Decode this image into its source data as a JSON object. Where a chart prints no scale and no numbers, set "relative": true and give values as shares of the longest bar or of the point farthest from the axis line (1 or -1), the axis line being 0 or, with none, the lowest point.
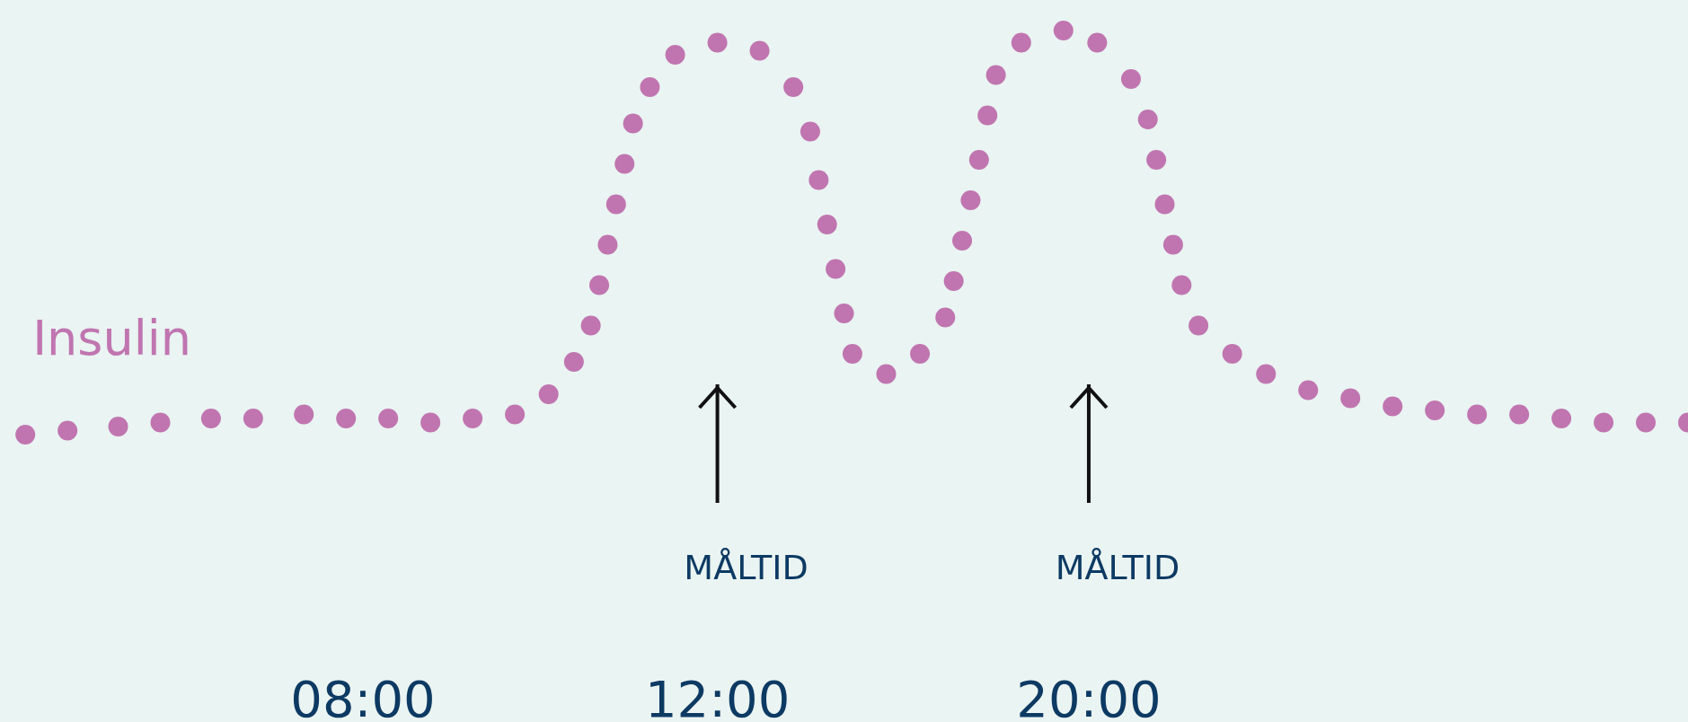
{
  "chart_data": {
    "type": "scatter",
    "relative": true,
    "marker": "circle",
    "categories": [
      null,
      null,
      null,
      null,
      null,
      null,
      null,
      null,
      null,
      null,
      null,
      null,
      null,
      null,
      null,
      null,
      null,
      null,
      null,
      null,
      null,
      null,
      null,
      null,
      null,
      null,
      null,
      null,
      null,
      null,
      null,
      null,
      null,
      null,
      null,
      null,
      null,
      null,
      null,
      null,
      null,
      null,
      null,
      "08:00",
      null,
      null,
      null,
      null,
      null,
      null,
      null,
      null,
      null,
      null,
      null,
      null,
      null,
      null,
      null,
      null,
      null,
      null,
      null,
      null,
      null,
      null,
      null,
      null,
      null,
      null,
      null,
      null,
      null,
      null,
      null,
      null,
      null,
      null,
      null,
      null,
      null,
      null,
      null,
      null,
      null,
      "12:00",
      null,
      null,
      null,
      null,
      null,
      null,
      null,
      null,
      null,
      null,
      null,
      null,
      null,
      null,
      null,
      null,
      null,
      null,
      null,
      null,
      null,
      null,
      null,
      null,
      null,
      null,
      null,
      null,
      null,
      null,
      null,
      null,
      null,
      null,
      null,
      null,
      null,
      null,
      null,
      null,
      null,
      null,
      null,
      "20:00",
      null,
      null,
      null,
      null,
      null,
      null,
      null,
      null,
      null,
      null,
      null,
      null,
      null,
      null,
      null,
      null,
      null,
      null,
      null,
      null,
      null,
      null,
      null,
      null,
      null,
      null,
      null,
      null,
      null,
      null,
      null,
      null,
      null,
      null,
      null,
      null,
      null,
      null,
      null,
      null,
      null,
      null,
      null,
      null,
      null,
      null,
      null,
      null,
      null,
      null,
      null,
      null,
      null,
      null,
      null,
      null,
      null,
      null,
      null,
      null,
      null,
      null,
      null,
      null,
      null,
      null,
      null,
      null,
      null,
      null,
      null
    ],
    "series": [
      {
        "name": "Insulin",
        "color": "#c075b0",
        "values": [
          null,
          null,
          null,
          0,
          null,
          null,
          null,
          null,
          0.01,
          null,
          null,
          null,
          null,
          null,
          0.02,
          null,
          null,
          null,
          null,
          0.03,
          null,
          null,
          null,
          null,
          null,
          0.04,
          null,
          null,
          null,
          null,
          0.04,
          null,
          null,
          null,
          null,
          null,
          0.05,
          null,
          null,
          null,
          null,
          0.04,
          null,
          null,
          null,
          null,
          0.04,
          null,
          null,
          null,
          null,
          0.03,
          null,
          null,
          null,
          null,
          0.04,
          null,
          null,
          null,
          null,
          0.05,
          null,
          null,
          null,
          0.1,
          null,
          null,
          0.18,
          null,
          0.27,
          0.37,
          0.47,
          0.57,
          0.67,
          0.77,
          null,
          0.86,
          null,
          null,
          0.94,
          null,
          null,
          null,
          null,
          0.97,
          null,
          null,
          null,
          null,
          0.95,
          null,
          null,
          null,
          0.86,
          null,
          0.75,
          0.63,
          0.52,
          0.41,
          0.3,
          0.2,
          null,
          null,
          null,
          0.15,
          null,
          null,
          null,
          0.2,
          null,
          null,
          0.29,
          0.38,
          0.48,
          0.58,
          0.68,
          0.79,
          0.89,
          null,
          null,
          0.97,
          null,
          null,
          null,
          null,
          1,
          null,
          null,
          null,
          0.97,
          null,
          null,
          null,
          0.88,
          null,
          0.78,
          0.68,
          0.57,
          0.47,
          0.37,
          null,
          0.27,
          null,
          null,
          null,
          0.2,
          null,
          null,
          null,
          0.15,
          null,
          null,
          null,
          null,
          0.11,
          null,
          null,
          null,
          null,
          0.09,
          null,
          null,
          null,
          null,
          0.07,
          null,
          null,
          null,
          null,
          0.06,
          null,
          null,
          null,
          null,
          0.05,
          null,
          null,
          null,
          null,
          0.05,
          null,
          null,
          null,
          null,
          0.04,
          null,
          null,
          null,
          null,
          0.03,
          null,
          null,
          null,
          null,
          0.03,
          null,
          null,
          null,
          null,
          0.03
        ]
      }
    ],
    "annotations": [
      "MÅLTID",
      "MÅLTID"
    ]
  }
}
